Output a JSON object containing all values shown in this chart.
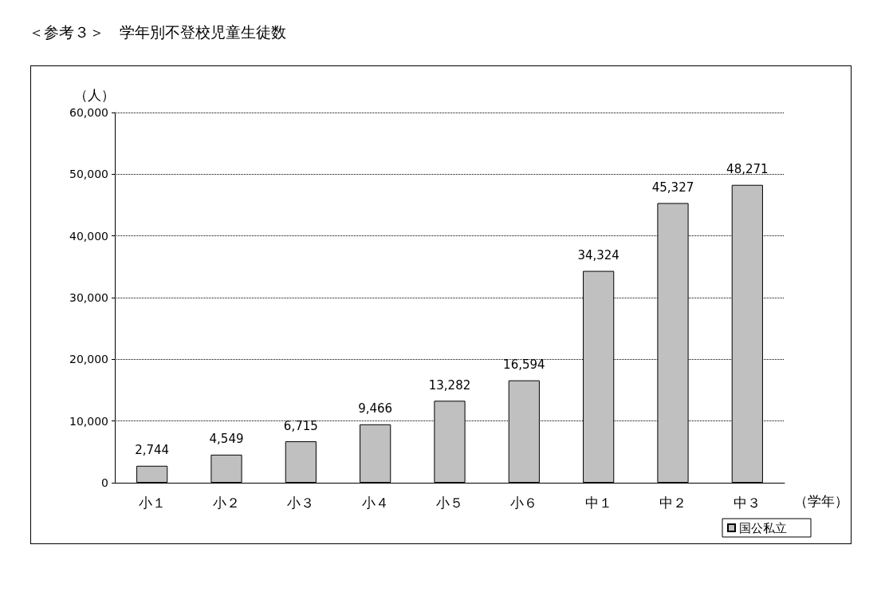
{
  "chart_data": {
    "type": "bar",
    "title": "＜参考３＞　学年別不登校児童生徒数",
    "ylabel": "（人）",
    "xlabel": "（学年）",
    "categories": [
      "小１",
      "小２",
      "小３",
      "小４",
      "小５",
      "小６",
      "中１",
      "中２",
      "中３"
    ],
    "series": [
      {
        "name": "国公私立",
        "color": "#c0c0c0",
        "values": [
          2744,
          4549,
          6715,
          9466,
          13282,
          16594,
          34324,
          45327,
          48271
        ],
        "value_labels": [
          "2,744",
          "4,549",
          "6,715",
          "9,466",
          "13,282",
          "16,594",
          "34,324",
          "45,327",
          "48,271"
        ]
      }
    ],
    "ylim": [
      0,
      60000
    ],
    "yticks": [
      {
        "value": 0,
        "label": "0"
      },
      {
        "value": 10000,
        "label": "10,000"
      },
      {
        "value": 20000,
        "label": "20,000"
      },
      {
        "value": 30000,
        "label": "30,000"
      },
      {
        "value": 40000,
        "label": "40,000"
      },
      {
        "value": 50000,
        "label": "50,000"
      },
      {
        "value": 60000,
        "label": "60,000"
      }
    ],
    "grid": "y",
    "legend": "bottom right"
  }
}
